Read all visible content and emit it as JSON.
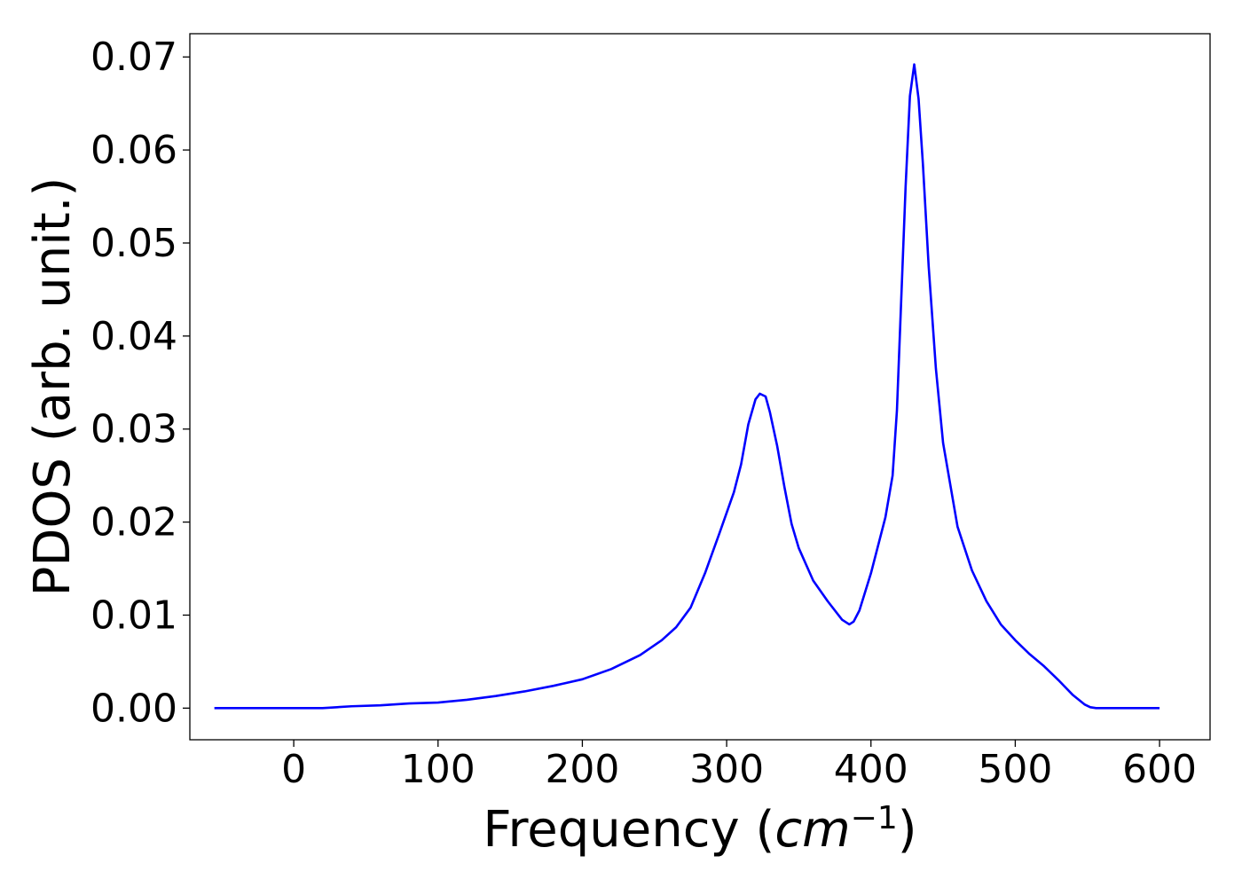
{
  "chart_data": {
    "type": "line",
    "title": "",
    "xlabel": "Frequency (",
    "xlabel_math": "cm",
    "xlabel_sup": "−1",
    "xlabel_end": ")",
    "ylabel": "PDOS (arb. unit.)",
    "xlim": [
      -72,
      635
    ],
    "ylim": [
      -0.0034,
      0.0725
    ],
    "xticks": [
      0,
      100,
      200,
      300,
      400,
      500,
      600
    ],
    "xtick_labels": [
      "0",
      "100",
      "200",
      "300",
      "400",
      "500",
      "600"
    ],
    "yticks": [
      0.0,
      0.01,
      0.02,
      0.03,
      0.04,
      0.05,
      0.06,
      0.07
    ],
    "ytick_labels": [
      "0.00",
      "0.01",
      "0.02",
      "0.03",
      "0.04",
      "0.05",
      "0.06",
      "0.07"
    ],
    "grid": false,
    "colors": {
      "line": "#0000ff"
    },
    "series": [
      {
        "x": [
          -55,
          0,
          20,
          40,
          60,
          80,
          100,
          120,
          140,
          160,
          180,
          200,
          220,
          240,
          255,
          265,
          275,
          285,
          295,
          305,
          310,
          315,
          320,
          323,
          327,
          330,
          335,
          340,
          345,
          350,
          360,
          370,
          380,
          385,
          388,
          392,
          400,
          410,
          415,
          418,
          421,
          424,
          427,
          430,
          433,
          436,
          440,
          445,
          450,
          460,
          470,
          480,
          490,
          500,
          510,
          520,
          530,
          540,
          548,
          552,
          556,
          560,
          570,
          580,
          600
        ],
        "y": [
          0.0,
          0.0,
          0.0,
          0.0002,
          0.0003,
          0.0005,
          0.0006,
          0.0009,
          0.0013,
          0.0018,
          0.0024,
          0.0031,
          0.0042,
          0.0057,
          0.0073,
          0.0087,
          0.0108,
          0.0145,
          0.0188,
          0.0232,
          0.0262,
          0.0305,
          0.0332,
          0.0338,
          0.0335,
          0.0318,
          0.0282,
          0.0238,
          0.0198,
          0.0172,
          0.0137,
          0.0115,
          0.0095,
          0.009,
          0.0093,
          0.0105,
          0.0145,
          0.0205,
          0.025,
          0.032,
          0.044,
          0.056,
          0.0658,
          0.0692,
          0.0655,
          0.0585,
          0.0475,
          0.0365,
          0.0285,
          0.0195,
          0.0148,
          0.0115,
          0.009,
          0.0073,
          0.0058,
          0.0045,
          0.003,
          0.0014,
          0.0004,
          0.0001,
          0.0,
          0.0,
          0.0,
          0.0,
          0.0
        ]
      }
    ]
  }
}
